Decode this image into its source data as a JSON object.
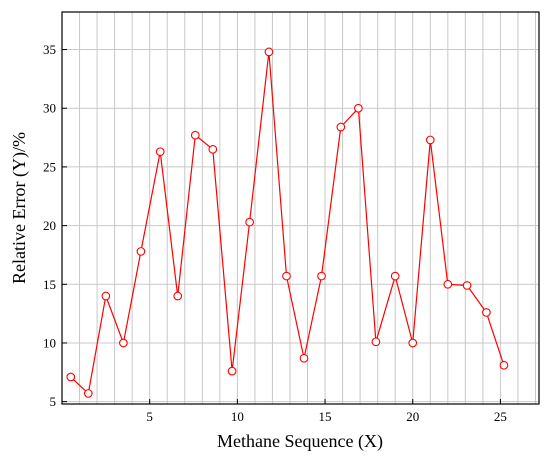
{
  "chart_data": {
    "type": "line",
    "title": "",
    "xlabel": "Methane Sequence (X)",
    "ylabel": "Relative Error (Y)/%",
    "xlim": [
      0,
      27.2
    ],
    "ylim": [
      4.8,
      38.2
    ],
    "xticks": [
      5,
      10,
      15,
      20,
      25
    ],
    "yticks": [
      5,
      10,
      15,
      20,
      25,
      30,
      35
    ],
    "xtick_labels": [
      "5",
      "10",
      "15",
      "20",
      "25"
    ],
    "ytick_labels": [
      "5",
      "10",
      "15",
      "20",
      "25",
      "30",
      "35"
    ],
    "grid": true,
    "x_grid_step": 1,
    "series": [
      {
        "color": "#ff0000",
        "marker": "open-circle",
        "x": [
          0.5,
          1.5,
          2.5,
          3.5,
          4.5,
          5.6,
          6.6,
          7.6,
          8.6,
          9.7,
          10.7,
          11.8,
          12.8,
          13.8,
          14.8,
          15.9,
          16.9,
          17.9,
          19.0,
          20.0,
          21.0,
          22.0,
          23.1,
          24.2,
          25.2
        ],
        "y": [
          7.1,
          5.7,
          14.0,
          10.0,
          17.8,
          26.3,
          14.0,
          27.7,
          26.5,
          7.6,
          20.3,
          34.8,
          15.7,
          8.7,
          15.7,
          28.4,
          30.0,
          10.1,
          15.7,
          10.0,
          27.3,
          15.0,
          14.9,
          12.6,
          8.1
        ]
      }
    ]
  }
}
